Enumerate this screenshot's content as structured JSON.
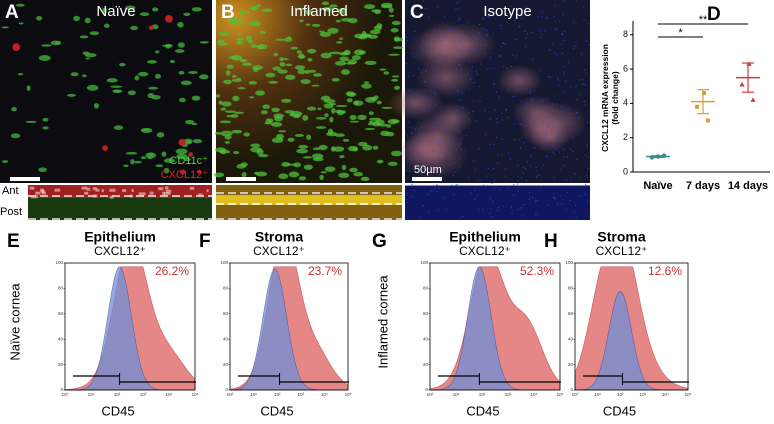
{
  "images": [
    {
      "letter": "A",
      "title": "Naïve",
      "legend": [
        "CD11c⁺",
        "CXCL12⁺"
      ],
      "strip_labels": [
        "Ant",
        "Post"
      ]
    },
    {
      "letter": "B",
      "title": "Inflamed"
    },
    {
      "letter": "C",
      "title": "Isotype",
      "scale": "50µm"
    }
  ],
  "chart_data": {
    "type": "dot",
    "letter": "D",
    "ylabel": "CXCL12 mRNA expression\n(fold change)",
    "categories": [
      "Naïve",
      "7 days",
      "14 days"
    ],
    "points": [
      [
        0.85,
        0.9,
        0.95
      ],
      [
        4.6,
        3.8,
        3.0
      ],
      [
        6.3,
        5.1,
        4.2
      ]
    ],
    "means": [
      0.9,
      4.1,
      5.5
    ],
    "errors": [
      0.05,
      0.7,
      0.85
    ],
    "colors": [
      "#3a8f8f",
      "#d4a03c",
      "#d03a3a"
    ],
    "ylim": [
      0,
      8.8
    ],
    "yticks": [
      0,
      2,
      4,
      6,
      8
    ],
    "annotations": [
      {
        "text": "**",
        "from": 0,
        "to": 2
      },
      {
        "text": "*",
        "from": 0,
        "to": 1
      }
    ]
  },
  "histograms": {
    "row_labels": [
      "Naïve cornea",
      "Inflamed cornea"
    ],
    "xlabel": "CD45",
    "yticks": [
      0,
      20,
      40,
      60,
      80,
      100
    ],
    "xticks": [
      "10⁰",
      "10¹",
      "10²",
      "10³",
      "10⁴",
      "10⁵"
    ],
    "panels": [
      {
        "letter": "E",
        "title": "Epithelium",
        "subtitle": "CXCL12⁺",
        "percent": "26.2%"
      },
      {
        "letter": "F",
        "title": "Stroma",
        "subtitle": "CXCL12⁺",
        "percent": "23.7%"
      },
      {
        "letter": "G",
        "title": "Epithelium",
        "subtitle": "CXCL12⁺",
        "percent": "52.3%"
      },
      {
        "letter": "H",
        "title": "Stroma",
        "subtitle": "CXCL12⁺",
        "percent": "12.6%"
      }
    ]
  }
}
